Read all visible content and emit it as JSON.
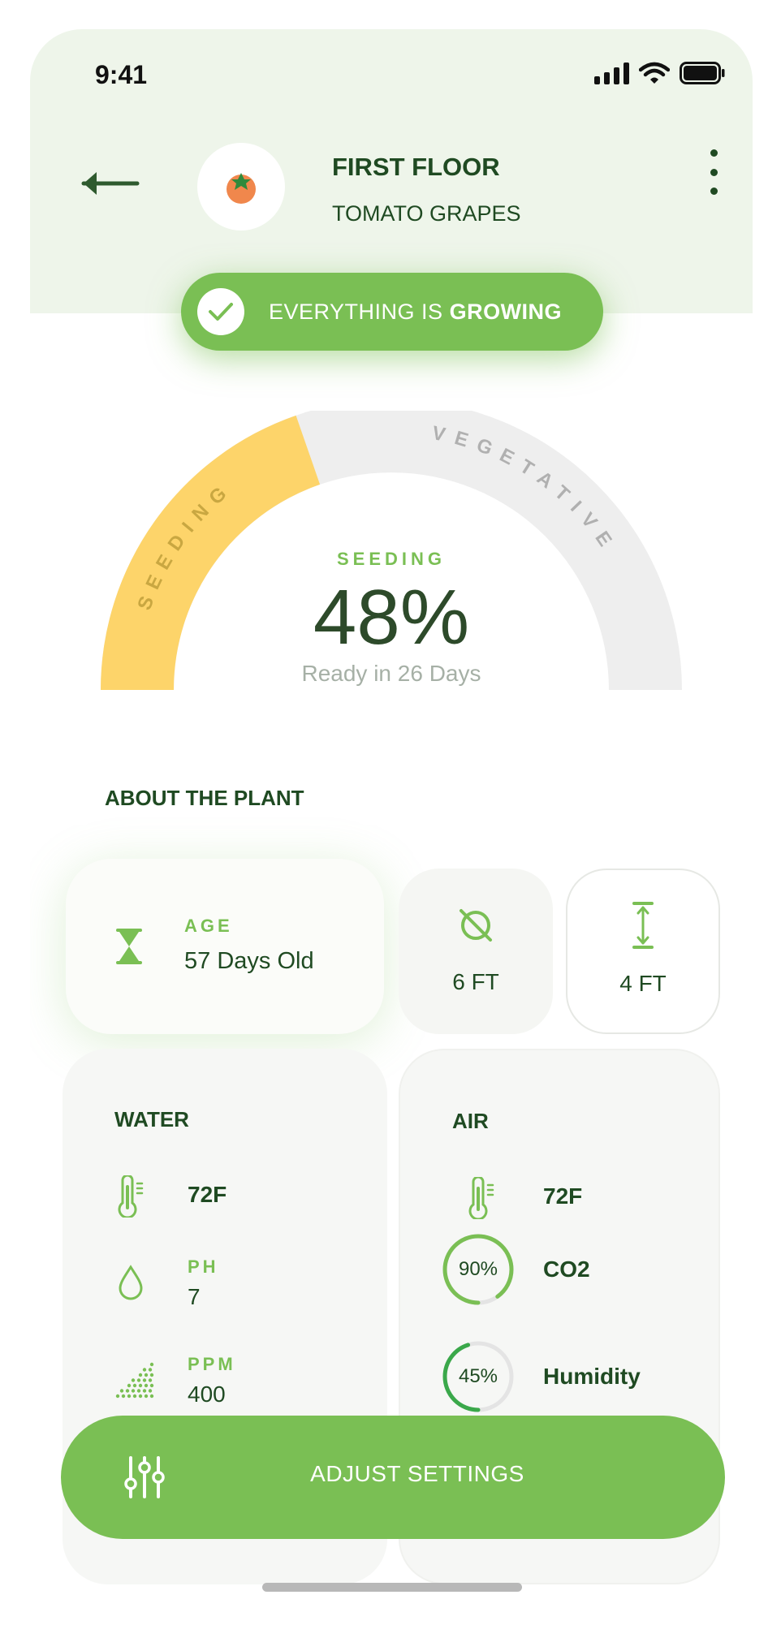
{
  "status_bar": {
    "time": "9:41"
  },
  "header": {
    "title": "FIRST FLOOR",
    "subtitle": "TOMATO GRAPES",
    "status_prefix": "EVERYTHING IS",
    "status_value": "GROWING"
  },
  "gauge": {
    "stage": "SEEDING",
    "percent": "48%",
    "ready": "Ready in 26 Days",
    "arc_label_left": "SEEDING",
    "arc_label_right": "VEGETATIVE",
    "progress": 0.48
  },
  "about": {
    "title": "ABOUT THE PLANT",
    "age_label": "AGE",
    "age_value": "57 Days Old",
    "width_value": "6 FT",
    "height_value": "4 FT"
  },
  "water": {
    "title": "WATER",
    "temperature": "72F",
    "ph_label": "PH",
    "ph_value": "7",
    "ppm_label": "PPM",
    "ppm_value": "400"
  },
  "air": {
    "title": "AIR",
    "temperature": "72F",
    "co2_percent": "90%",
    "co2_label": "CO2",
    "co2_fraction": 0.9,
    "humidity_percent": "45%",
    "humidity_label": "Humidity",
    "humidity_fraction": 0.45
  },
  "actions": {
    "adjust_label": "ADJUST SETTINGS"
  },
  "colors": {
    "accent": "#7abf54",
    "dark_green": "#1f4a22",
    "seeding_yellow": "#fdd46a",
    "track_gray": "#eeeeee"
  }
}
